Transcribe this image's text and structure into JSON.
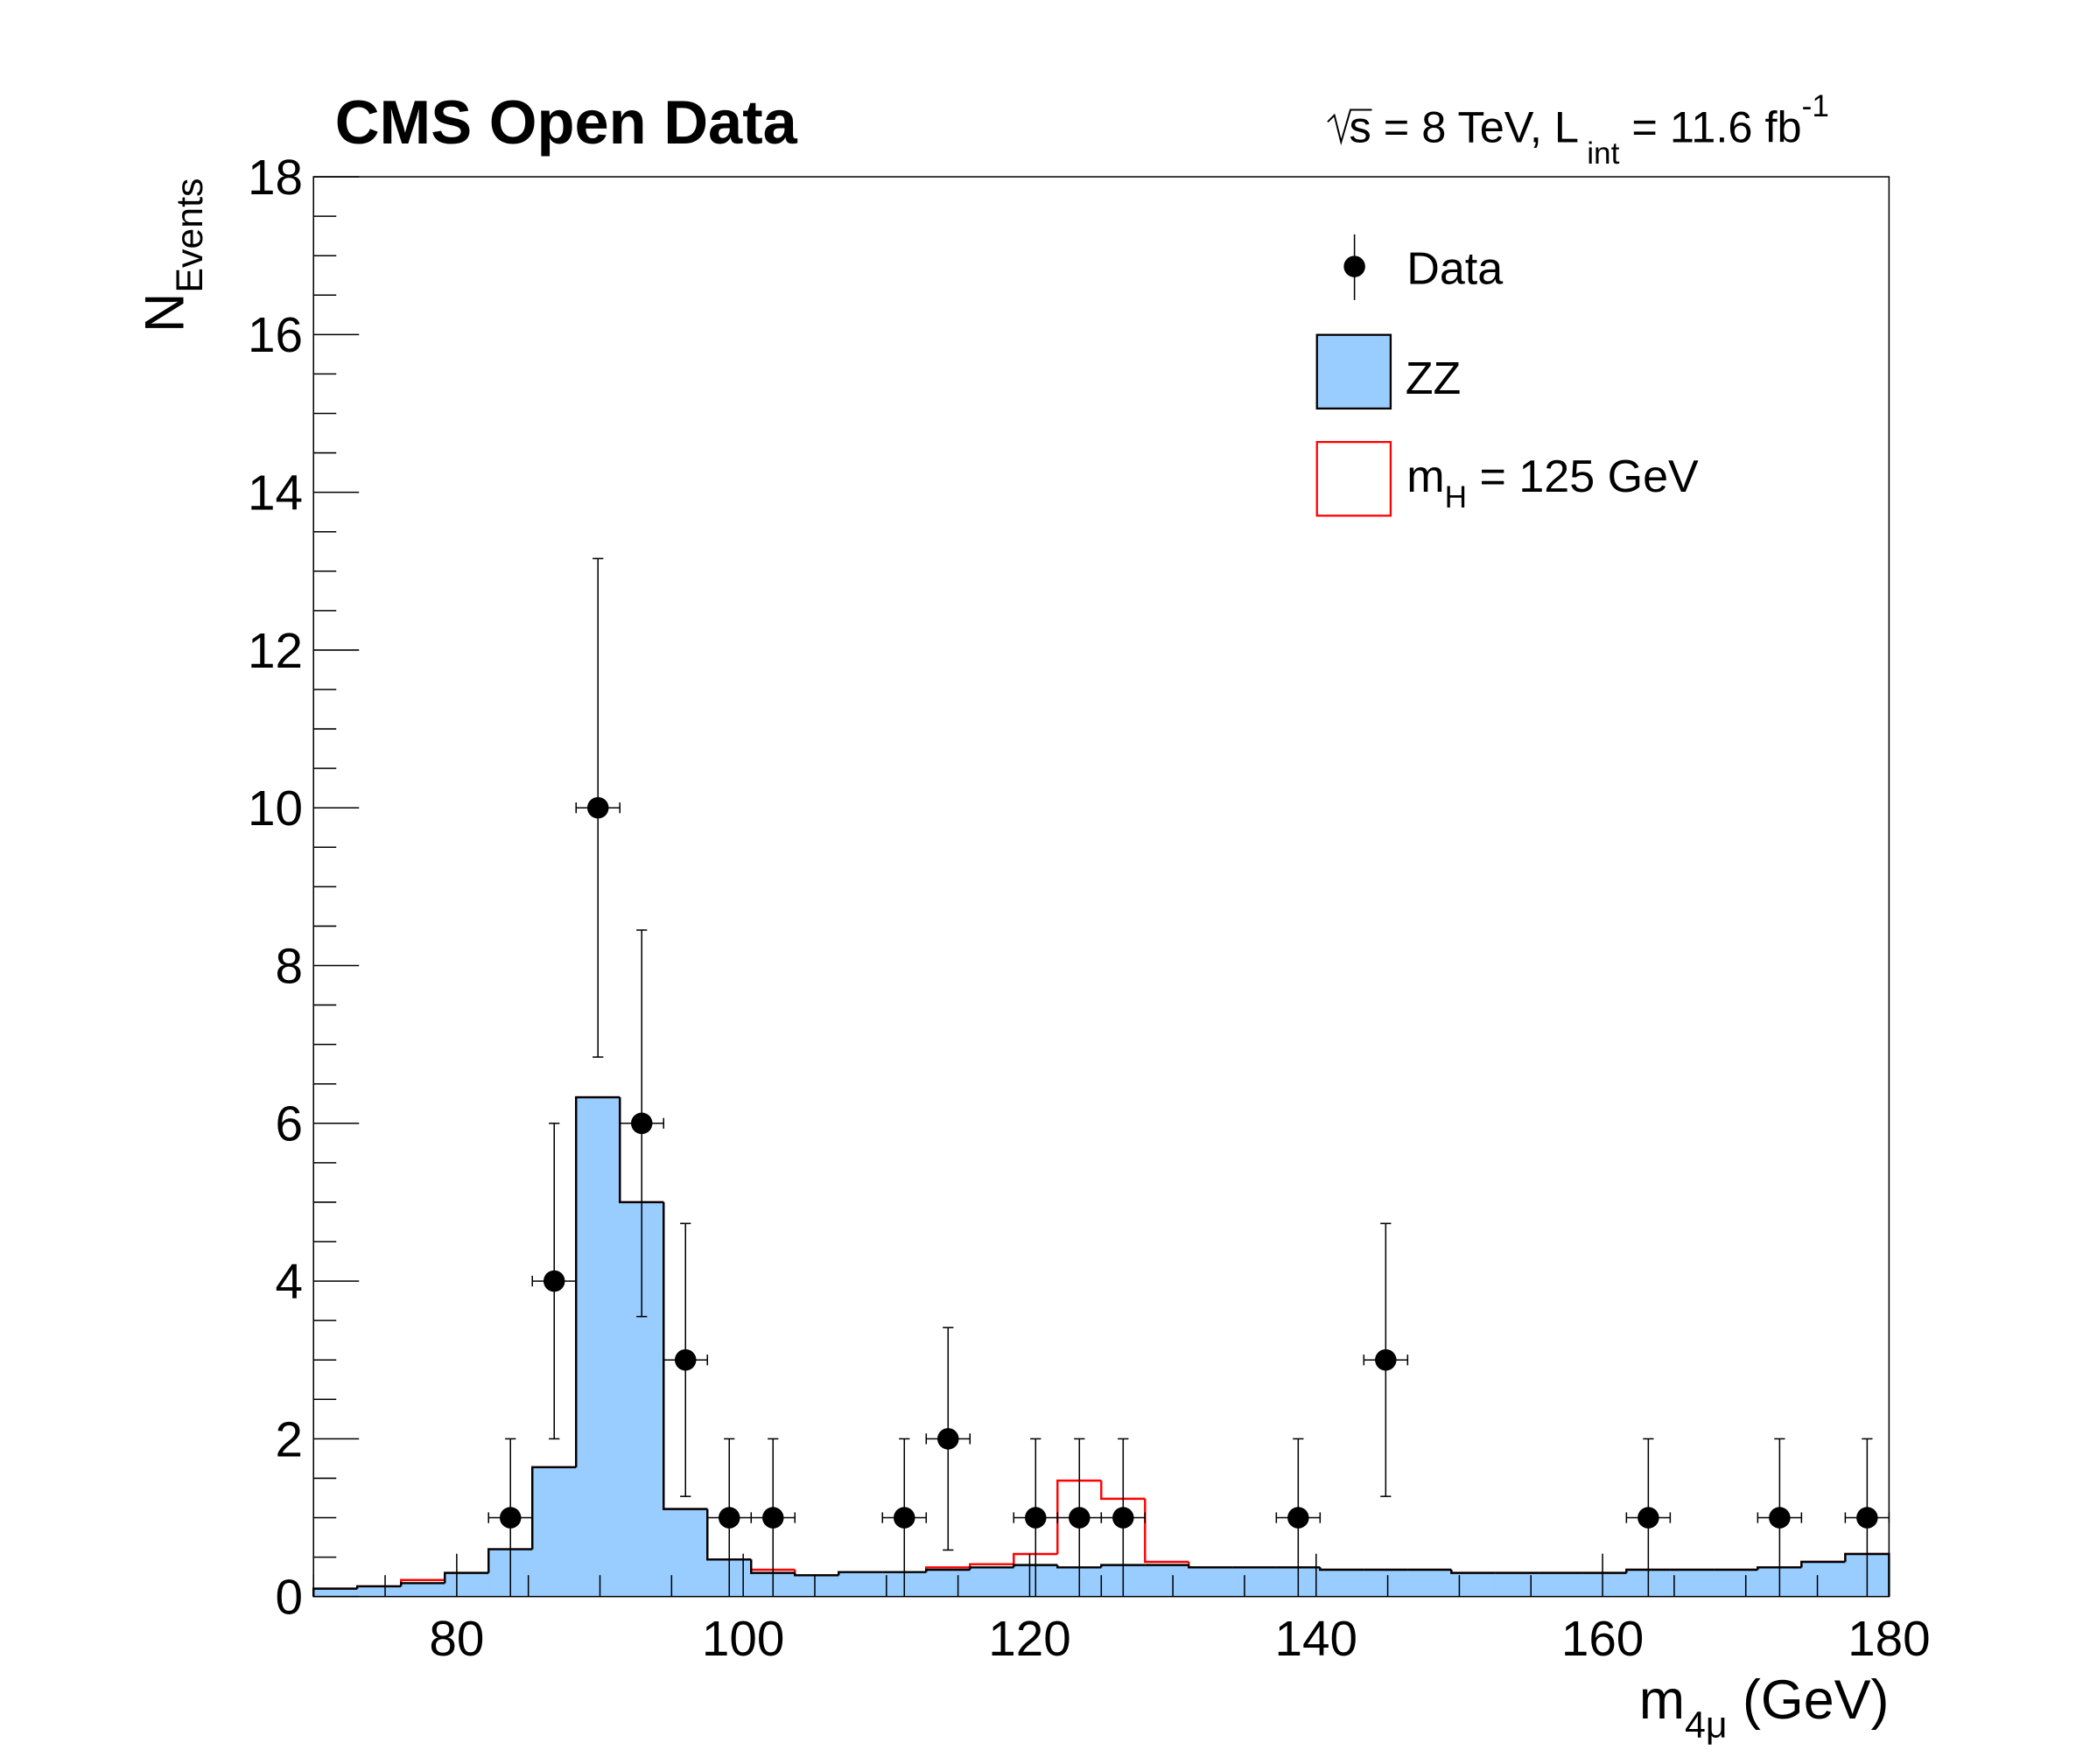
{
  "chart_data": {
    "type": "bar",
    "title": "CMS Open Data",
    "lumi_text": {
      "sqrt_s": "s",
      "energy": " = 8 TeV, L",
      "lumi_sub": "int",
      "lumi_value": " = 11.6 fb",
      "lumi_sup": "-1"
    },
    "xlabel": {
      "main": "m",
      "sub": "4μ",
      "unit": " (GeV)"
    },
    "ylabel": {
      "main": "N",
      "sub": "Events"
    },
    "xlim": [
      70,
      180
    ],
    "ylim": [
      0,
      18
    ],
    "nbins": 36,
    "xticks": [
      "80",
      "100",
      "120",
      "140",
      "160",
      "180"
    ],
    "yticks": [
      "0",
      "2",
      "4",
      "6",
      "8",
      "10",
      "12",
      "14",
      "16",
      "18"
    ],
    "grid": false,
    "legend_placement": "top-right",
    "colors": {
      "zz_fill": "#99ccff",
      "higgs_line": "#ff0000",
      "data": "#000000"
    },
    "series": [
      {
        "name": "Data",
        "kind": "points",
        "values": [
          0,
          0,
          0,
          0,
          1,
          4,
          10,
          6,
          3,
          1,
          1,
          0,
          0,
          1,
          2,
          0,
          1,
          1,
          1,
          0,
          0,
          0,
          1,
          0,
          3,
          0,
          0,
          0,
          0,
          0,
          1,
          0,
          0,
          1,
          0,
          1
        ],
        "yerr": [
          0,
          0,
          0,
          0,
          1,
          2,
          3.16,
          2.45,
          1.73,
          1,
          1,
          0,
          0,
          1,
          1.41,
          0,
          1,
          1,
          1,
          0,
          0,
          0,
          1,
          0,
          1.73,
          0,
          0,
          0,
          0,
          0,
          1,
          0,
          0,
          1,
          0,
          1
        ]
      },
      {
        "name": "ZZ",
        "kind": "filled-histogram",
        "values": [
          0.1,
          0.13,
          0.17,
          0.3,
          0.6,
          1.64,
          6.33,
          5.0,
          1.11,
          0.47,
          0.3,
          0.27,
          0.31,
          0.31,
          0.34,
          0.37,
          0.4,
          0.37,
          0.4,
          0.4,
          0.37,
          0.37,
          0.37,
          0.34,
          0.34,
          0.34,
          0.3,
          0.3,
          0.3,
          0.3,
          0.34,
          0.34,
          0.34,
          0.37,
          0.44,
          0.54
        ]
      },
      {
        "name": "m_H = 125 GeV",
        "kind": "stacked-outline (ZZ + Higgs)",
        "values": [
          0.1,
          0.13,
          0.21,
          0.3,
          0.6,
          1.64,
          6.33,
          5.0,
          1.11,
          0.47,
          0.34,
          0.27,
          0.31,
          0.31,
          0.37,
          0.41,
          0.54,
          1.47,
          1.24,
          0.44,
          0.37,
          0.37,
          0.37,
          0.34,
          0.34,
          0.34,
          0.3,
          0.3,
          0.3,
          0.3,
          0.34,
          0.34,
          0.34,
          0.37,
          0.44,
          0.54
        ]
      }
    ],
    "legend": {
      "data": "Data",
      "zz": "ZZ",
      "higgs_main": "m",
      "higgs_sub": "H",
      "higgs_rest": " = 125 GeV"
    }
  }
}
